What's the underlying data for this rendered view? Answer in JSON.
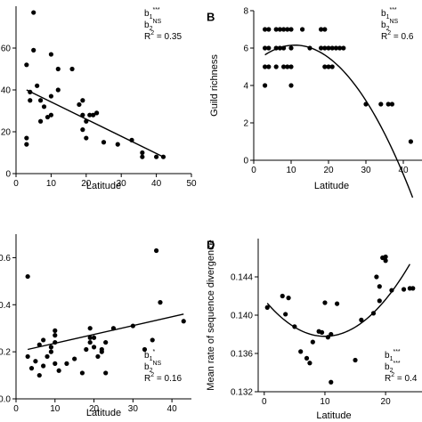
{
  "chart_data": [
    {
      "id": "A",
      "type": "scatter",
      "panel_label": "",
      "xlabel": "Latitude",
      "ylabel": "",
      "xlim": [
        0,
        50
      ],
      "ylim": [
        0,
        80
      ],
      "xticks": [
        0,
        10,
        20,
        30,
        40,
        50
      ],
      "yticks": [
        0,
        20,
        40,
        60
      ],
      "stats": [
        {
          "base": "b",
          "sub": "1",
          "sup": "***"
        },
        {
          "base": "b",
          "sub": "2",
          "sup": "NS"
        },
        {
          "text": "R",
          "sup": "2",
          "rest": " = 0.35"
        }
      ],
      "points": [
        [
          5,
          77
        ],
        [
          3,
          52
        ],
        [
          5,
          59
        ],
        [
          10,
          57
        ],
        [
          4,
          39
        ],
        [
          3,
          17
        ],
        [
          3,
          14
        ],
        [
          4,
          35
        ],
        [
          7,
          25
        ],
        [
          6,
          42
        ],
        [
          7,
          35
        ],
        [
          8,
          32
        ],
        [
          9,
          27
        ],
        [
          10,
          37
        ],
        [
          10,
          28
        ],
        [
          12,
          50
        ],
        [
          12,
          40
        ],
        [
          16,
          50
        ],
        [
          19,
          35
        ],
        [
          18,
          33
        ],
        [
          19,
          28
        ],
        [
          19,
          21
        ],
        [
          20,
          17
        ],
        [
          20,
          25
        ],
        [
          21,
          28
        ],
        [
          22,
          28
        ],
        [
          23,
          29
        ],
        [
          25,
          15
        ],
        [
          29,
          14
        ],
        [
          33,
          16
        ],
        [
          36,
          8
        ],
        [
          36,
          10
        ],
        [
          40,
          8
        ],
        [
          42,
          8
        ]
      ],
      "fit": {
        "kind": "linear",
        "x0": 3,
        "y0": 40,
        "x1": 42,
        "y1": 8
      }
    },
    {
      "id": "B",
      "type": "scatter",
      "panel_label": "B",
      "xlabel": "Latitude",
      "ylabel": "Guild richness",
      "xlim": [
        0,
        45
      ],
      "ylim": [
        0,
        8
      ],
      "xticks": [
        0,
        10,
        20,
        30,
        40
      ],
      "yticks": [
        0,
        2,
        4,
        6,
        8
      ],
      "stats": [
        {
          "base": "b",
          "sub": "1",
          "sup": "***"
        },
        {
          "base": "b",
          "sub": "2",
          "sup": "NS"
        },
        {
          "text": "R",
          "sup": "2",
          "rest": " = 0.6"
        }
      ],
      "points": [
        [
          3,
          7
        ],
        [
          4,
          7
        ],
        [
          6,
          7
        ],
        [
          7,
          7
        ],
        [
          8,
          7
        ],
        [
          9,
          7
        ],
        [
          10,
          7
        ],
        [
          13,
          7
        ],
        [
          18,
          7
        ],
        [
          19,
          7
        ],
        [
          3,
          6
        ],
        [
          4,
          6
        ],
        [
          6,
          6
        ],
        [
          7,
          6
        ],
        [
          8,
          6
        ],
        [
          10,
          6
        ],
        [
          15,
          6
        ],
        [
          18,
          6
        ],
        [
          19,
          6
        ],
        [
          20,
          6
        ],
        [
          21,
          6
        ],
        [
          22,
          6
        ],
        [
          23,
          6
        ],
        [
          24,
          6
        ],
        [
          3,
          5
        ],
        [
          4,
          5
        ],
        [
          6,
          5
        ],
        [
          8,
          5
        ],
        [
          9,
          5
        ],
        [
          10,
          5
        ],
        [
          19,
          5
        ],
        [
          20,
          5
        ],
        [
          21,
          5
        ],
        [
          3,
          4
        ],
        [
          10,
          4
        ],
        [
          30,
          3
        ],
        [
          34,
          3
        ],
        [
          36,
          3
        ],
        [
          37,
          3
        ],
        [
          42,
          1
        ]
      ],
      "fit": {
        "kind": "quadratic",
        "a": -0.0082,
        "b": 0.18,
        "c": 5.17,
        "from": 3,
        "to": 42.5
      }
    },
    {
      "id": "C",
      "type": "scatter",
      "panel_label": "",
      "xlabel": "Latitude",
      "ylabel": "",
      "xlim": [
        0,
        45
      ],
      "ylim": [
        0,
        0.7
      ],
      "xticks": [
        0,
        10,
        20,
        30,
        40
      ],
      "yticks": [
        0.0,
        0.2,
        0.4,
        0.6
      ],
      "stats": [
        {
          "base": "b",
          "sub": "1",
          "sup": "*"
        },
        {
          "base": "b",
          "sub": "2",
          "sup": "NS"
        },
        {
          "text": "R",
          "sup": "2",
          "rest": " = 0.16"
        }
      ],
      "points": [
        [
          3,
          0.52
        ],
        [
          3,
          0.18
        ],
        [
          4,
          0.13
        ],
        [
          5,
          0.16
        ],
        [
          6,
          0.1
        ],
        [
          6,
          0.23
        ],
        [
          7,
          0.25
        ],
        [
          7,
          0.14
        ],
        [
          8,
          0.18
        ],
        [
          9,
          0.2
        ],
        [
          9,
          0.22
        ],
        [
          10,
          0.24
        ],
        [
          10,
          0.29
        ],
        [
          10,
          0.27
        ],
        [
          10,
          0.15
        ],
        [
          11,
          0.12
        ],
        [
          13,
          0.15
        ],
        [
          15,
          0.17
        ],
        [
          17,
          0.11
        ],
        [
          18,
          0.21
        ],
        [
          19,
          0.26
        ],
        [
          19,
          0.3
        ],
        [
          19,
          0.24
        ],
        [
          20,
          0.22
        ],
        [
          20,
          0.26
        ],
        [
          21,
          0.18
        ],
        [
          22,
          0.2
        ],
        [
          22,
          0.21
        ],
        [
          23,
          0.24
        ],
        [
          23,
          0.11
        ],
        [
          25,
          0.3
        ],
        [
          30,
          0.31
        ],
        [
          33,
          0.21
        ],
        [
          35,
          0.25
        ],
        [
          36,
          0.63
        ],
        [
          37,
          0.41
        ],
        [
          43,
          0.33
        ]
      ],
      "fit": {
        "kind": "linear",
        "x0": 3,
        "y0": 0.21,
        "x1": 43,
        "y1": 0.36
      }
    },
    {
      "id": "D",
      "type": "scatter",
      "panel_label": "D",
      "xlabel": "Latitude",
      "ylabel": "Mean rate of sequence divergence",
      "xlim": [
        -1,
        26
      ],
      "ylim": [
        0.132,
        0.148
      ],
      "xticks": [
        0,
        10,
        20
      ],
      "yticks": [
        0.132,
        0.136,
        0.14,
        0.144
      ],
      "stats": [
        {
          "base": "b",
          "sub": "1",
          "sup": "***"
        },
        {
          "base": "b",
          "sub": "2",
          "sup": "***"
        },
        {
          "text": "R",
          "sup": "2",
          "rest": " = 0.4"
        }
      ],
      "points": [
        [
          0.5,
          0.1408
        ],
        [
          3,
          0.142
        ],
        [
          3.5,
          0.1401
        ],
        [
          4,
          0.1418
        ],
        [
          5,
          0.1388
        ],
        [
          6,
          0.1362
        ],
        [
          7,
          0.1355
        ],
        [
          7.5,
          0.135
        ],
        [
          8,
          0.1372
        ],
        [
          9,
          0.1383
        ],
        [
          9.5,
          0.1382
        ],
        [
          10,
          0.1413
        ],
        [
          10.5,
          0.1377
        ],
        [
          11,
          0.138
        ],
        [
          11,
          0.133
        ],
        [
          12,
          0.1412
        ],
        [
          15,
          0.1353
        ],
        [
          16,
          0.1395
        ],
        [
          18,
          0.1402
        ],
        [
          18.5,
          0.144
        ],
        [
          19,
          0.143
        ],
        [
          19,
          0.1415
        ],
        [
          19.5,
          0.146
        ],
        [
          20,
          0.1461
        ],
        [
          20,
          0.1457
        ],
        [
          21,
          0.1426
        ],
        [
          23,
          0.1427
        ],
        [
          24,
          0.1428
        ],
        [
          24.5,
          0.1428
        ]
      ],
      "fit": {
        "kind": "quadratic",
        "a": 3.84e-05,
        "b": -0.000767,
        "c": 0.14162,
        "from": 0.5,
        "to": 24
      }
    }
  ]
}
